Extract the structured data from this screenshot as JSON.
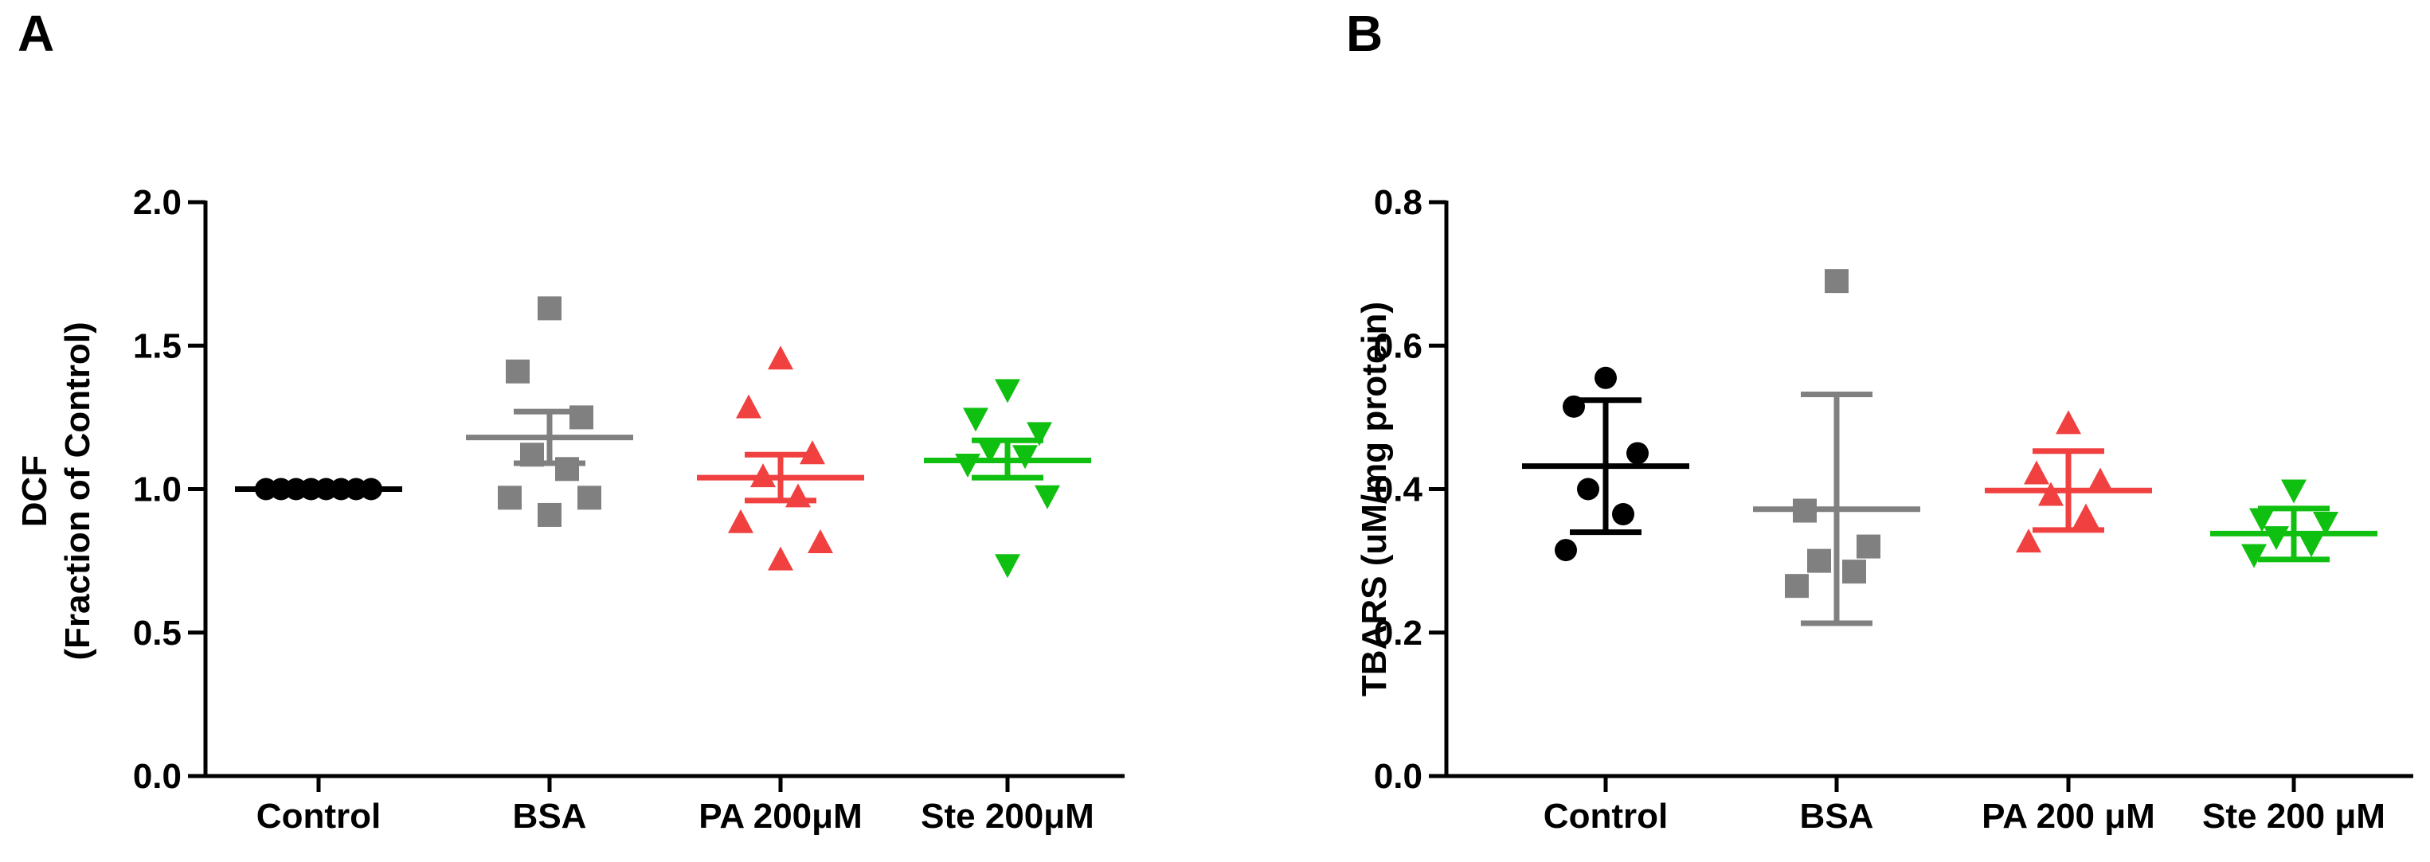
{
  "panels": [
    {
      "panel_label": "A",
      "chart_data": {
        "type": "scatter",
        "ylabel": [
          "DCF",
          "(Fraction of Control)"
        ],
        "ylim": [
          0,
          2.0
        ],
        "yticks": [
          "0.0",
          "0.5",
          "1.0",
          "1.5",
          "2.0"
        ],
        "ytick_values": [
          0,
          0.5,
          1.0,
          1.5,
          2.0
        ],
        "categories": [
          "Control",
          "BSA",
          "PA 200μM",
          "Ste 200μM"
        ],
        "groups": [
          {
            "category": "Control",
            "color": "#000000",
            "marker": "circle",
            "points": [
              1.0,
              1.0,
              1.0,
              1.0,
              1.0,
              1.0,
              1.0,
              1.0
            ],
            "mean": 1.0,
            "error_low": 1.0,
            "error_high": 1.0
          },
          {
            "category": "BSA",
            "color": "#808080",
            "marker": "square",
            "points": [
              1.63,
              1.41,
              1.25,
              1.12,
              1.07,
              0.97,
              0.97,
              0.91
            ],
            "mean": 1.18,
            "error_low": 1.09,
            "error_high": 1.27
          },
          {
            "category": "PA 200μM",
            "color": "#f04040",
            "marker": "triangle-up",
            "points": [
              1.45,
              1.28,
              1.12,
              1.04,
              0.97,
              0.88,
              0.81,
              0.75
            ],
            "mean": 1.04,
            "error_low": 0.96,
            "error_high": 1.12
          },
          {
            "category": "Ste 200μM",
            "color": "#10c010",
            "marker": "triangle-down",
            "points": [
              1.35,
              1.25,
              1.2,
              1.14,
              1.12,
              1.09,
              0.98,
              0.74
            ],
            "mean": 1.1,
            "error_low": 1.04,
            "error_high": 1.17
          }
        ]
      }
    },
    {
      "panel_label": "B",
      "chart_data": {
        "type": "scatter",
        "ylabel": [
          "TBARS (uM/mg protein)"
        ],
        "ylim": [
          0,
          0.8
        ],
        "yticks": [
          "0.0",
          "0.2",
          "0.4",
          "0.6",
          "0.8"
        ],
        "ytick_values": [
          0,
          0.2,
          0.4,
          0.6,
          0.8
        ],
        "categories": [
          "Control",
          "BSA",
          "PA 200 μM",
          "Ste 200 μM"
        ],
        "groups": [
          {
            "category": "Control",
            "color": "#000000",
            "marker": "circle",
            "points": [
              0.555,
              0.515,
              0.45,
              0.4,
              0.365,
              0.315
            ],
            "mean": 0.432,
            "error_low": 0.34,
            "error_high": 0.524
          },
          {
            "category": "BSA",
            "color": "#808080",
            "marker": "square",
            "points": [
              0.69,
              0.37,
              0.32,
              0.3,
              0.285,
              0.265
            ],
            "mean": 0.372,
            "error_low": 0.213,
            "error_high": 0.532
          },
          {
            "category": "PA 200 μM",
            "color": "#f04040",
            "marker": "triangle-up",
            "points": [
              0.49,
              0.42,
              0.41,
              0.39,
              0.36,
              0.325
            ],
            "mean": 0.398,
            "error_low": 0.343,
            "error_high": 0.453
          },
          {
            "category": "Ste 200 μM",
            "color": "#10c010",
            "marker": "triangle-down",
            "points": [
              0.4,
              0.36,
              0.355,
              0.335,
              0.325,
              0.31
            ],
            "mean": 0.338,
            "error_low": 0.302,
            "error_high": 0.373
          }
        ]
      }
    }
  ]
}
